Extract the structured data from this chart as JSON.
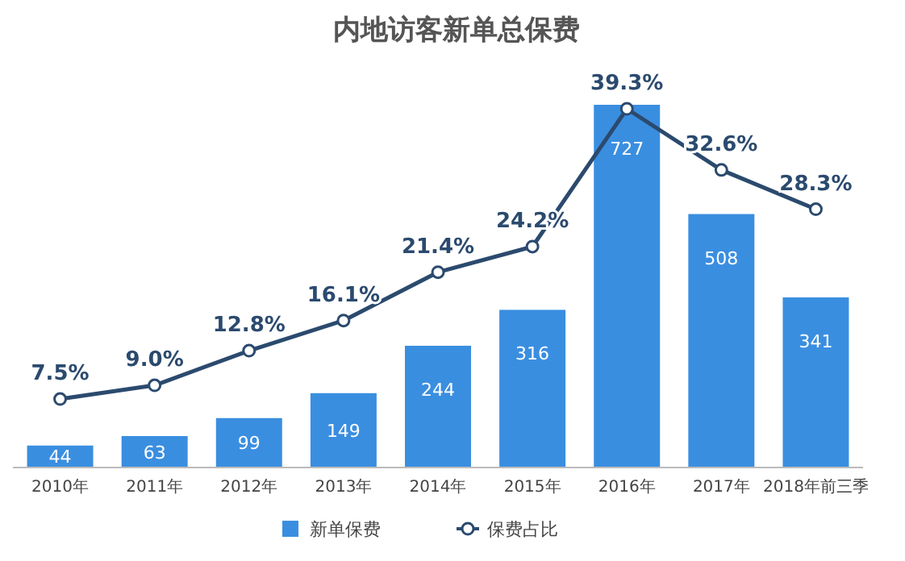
{
  "chart_data": {
    "type": "bar",
    "title": "内地访客新单总保费",
    "categories": [
      "2010年",
      "2011年",
      "2012年",
      "2013年",
      "2014年",
      "2015年",
      "2016年",
      "2017年",
      "2018年前三季"
    ],
    "series": [
      {
        "name": "新单保费",
        "color": "#3a8ee0",
        "values": [
          44,
          63,
          99,
          149,
          244,
          316,
          727,
          508,
          341
        ],
        "value_labels": [
          "44",
          "63",
          "99",
          "149",
          "244",
          "316",
          "727",
          "508",
          "341"
        ]
      },
      {
        "name": "保费占比",
        "type": "line",
        "axis": "y2",
        "color": "#2b4a6e",
        "marker": "circle",
        "values": [
          7.5,
          9.0,
          12.8,
          16.1,
          21.4,
          24.2,
          39.3,
          32.6,
          28.3
        ],
        "value_labels": [
          "7.5%",
          "9.0%",
          "12.8%",
          "16.1%",
          "21.4%",
          "24.2%",
          "39.3%",
          "32.6%",
          "28.3%"
        ]
      }
    ],
    "legend": "bottom"
  }
}
